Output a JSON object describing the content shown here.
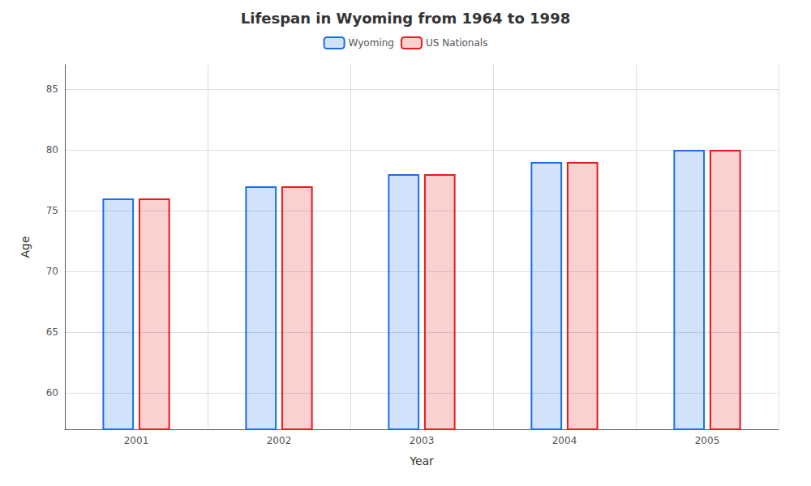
{
  "chart_data": {
    "type": "bar",
    "title": "Lifespan in Wyoming from 1964 to 1998",
    "x_label": "Year",
    "y_label": "Age",
    "categories": [
      "2001",
      "2002",
      "2003",
      "2004",
      "2005"
    ],
    "series": [
      {
        "name": "Wyoming",
        "color": "#1a6fe8",
        "values": [
          76,
          77,
          78,
          79,
          80
        ]
      },
      {
        "name": "US Nationals",
        "color": "#e81a1a",
        "values": [
          76,
          77,
          78,
          79,
          80
        ]
      }
    ],
    "ylim": [
      57,
      87
    ],
    "yticks": [
      60,
      65,
      70,
      75,
      80,
      85
    ],
    "grid": true,
    "legend": "top"
  }
}
